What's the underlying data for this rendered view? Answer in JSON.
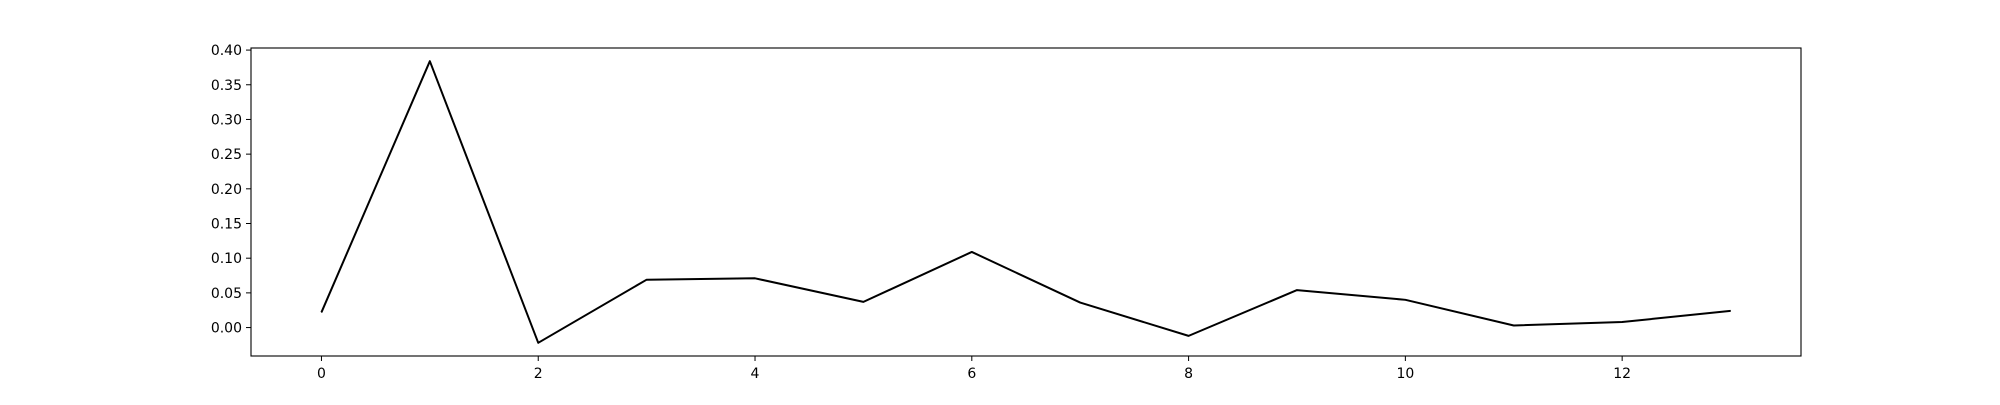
{
  "chart_data": {
    "type": "line",
    "title": "",
    "xlabel": "",
    "ylabel": "",
    "x": [
      0,
      1,
      2,
      3,
      4,
      5,
      6,
      7,
      8,
      9,
      10,
      11,
      12,
      13
    ],
    "series": [
      {
        "values": [
          0.022,
          0.384,
          -0.022,
          0.069,
          0.071,
          0.037,
          0.109,
          0.036,
          -0.012,
          0.054,
          0.04,
          0.003,
          0.008,
          0.024
        ],
        "color": "#000000"
      }
    ],
    "xlim": [
      -0.65,
      13.65
    ],
    "ylim": [
      -0.041,
      0.403
    ],
    "xticks": [
      0,
      2,
      4,
      6,
      8,
      10,
      12
    ],
    "xtick_labels": [
      "0",
      "2",
      "4",
      "6",
      "8",
      "10",
      "12"
    ],
    "yticks": [
      0.0,
      0.05,
      0.1,
      0.15,
      0.2,
      0.25,
      0.3,
      0.35,
      0.4
    ],
    "ytick_labels": [
      "0.00",
      "0.05",
      "0.10",
      "0.15",
      "0.20",
      "0.25",
      "0.30",
      "0.35",
      "0.40"
    ],
    "grid": false,
    "legend": false
  }
}
